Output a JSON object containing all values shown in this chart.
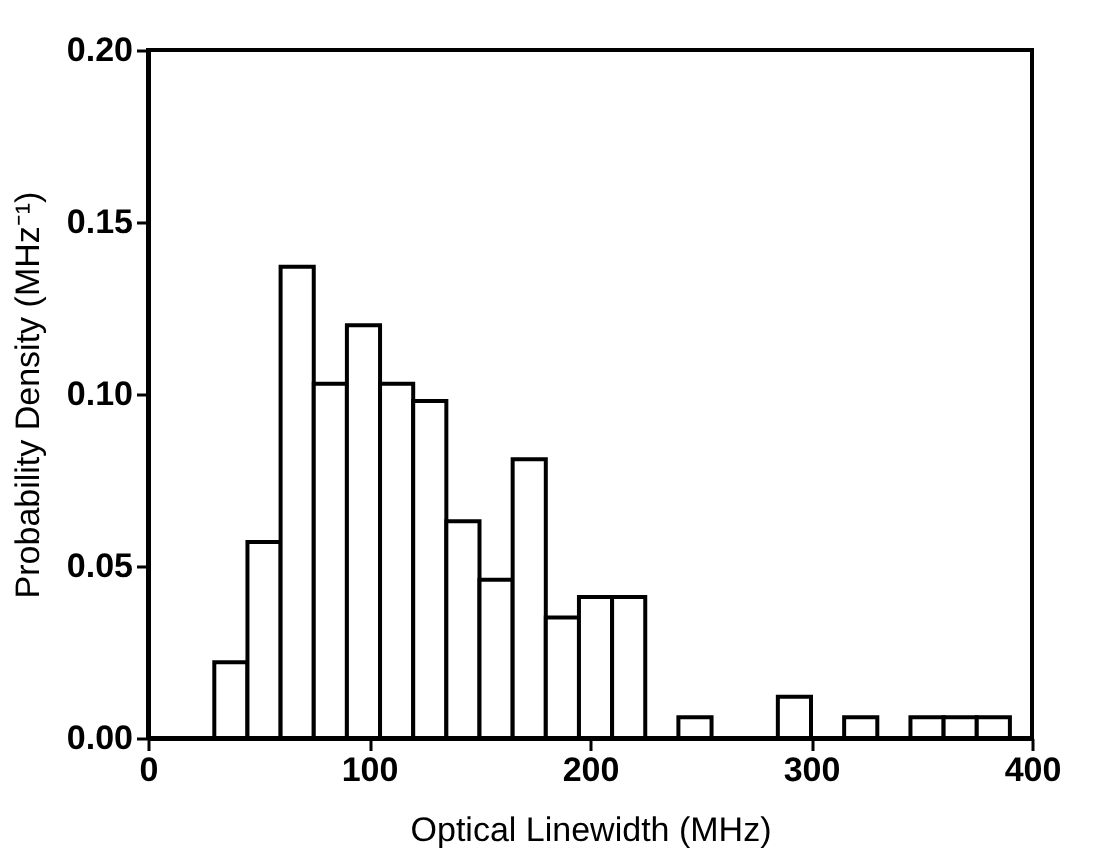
{
  "chart_data": {
    "type": "histogram",
    "xlabel": "Optical Linewidth (MHz)",
    "ylabel": "Probability Density (MHz⁻¹)",
    "bins": [
      30,
      45,
      60,
      75,
      90,
      105,
      120,
      135,
      150,
      165,
      180,
      195,
      210,
      225,
      240,
      255,
      270,
      285,
      300,
      315,
      330,
      345,
      360,
      375,
      390
    ],
    "values": [
      0.022,
      0.057,
      0.137,
      0.103,
      0.12,
      0.103,
      0.098,
      0.063,
      0.046,
      0.081,
      0.035,
      0.041,
      0.041,
      0,
      0.006,
      0,
      0,
      0.012,
      0,
      0.006,
      0,
      0.006,
      0.006,
      0.006
    ],
    "color": "#ffffff",
    "xlim": [
      0,
      400
    ],
    "xticks": [
      0,
      100,
      200,
      300,
      400
    ],
    "ylim": [
      0,
      0.2
    ],
    "yticks": [
      {
        "value": 0,
        "label": "0.00"
      },
      {
        "value": 0.05,
        "label": "0.05"
      },
      {
        "value": 0.1,
        "label": "0.10"
      },
      {
        "value": 0.15,
        "label": "0.15"
      },
      {
        "value": 0.2,
        "label": "0.20"
      }
    ],
    "grid": false
  }
}
